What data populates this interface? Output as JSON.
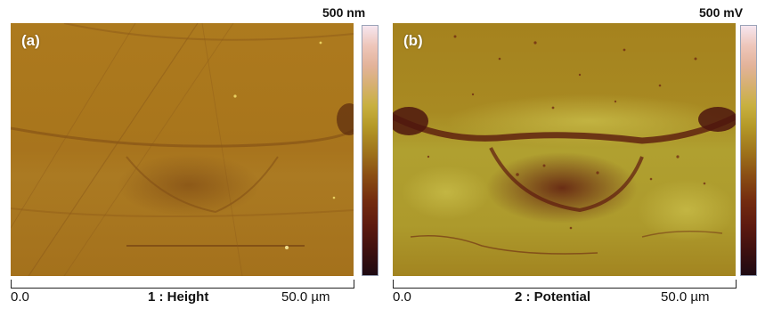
{
  "panels": [
    {
      "letter": "(a)",
      "channel": "1 : Height",
      "scale_max": "500 nm",
      "axis_min": "0.0",
      "axis_max": "50.0 µm",
      "base_color": "#a5731c"
    },
    {
      "letter": "(b)",
      "channel": "2 : Potential",
      "scale_max": "500 mV",
      "axis_min": "0.0",
      "axis_max": "50.0 µm",
      "base_color": "#a58a22"
    }
  ]
}
